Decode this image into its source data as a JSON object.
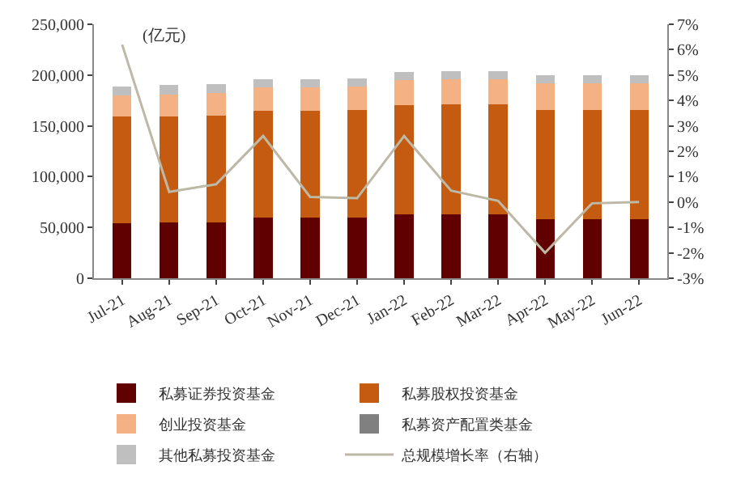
{
  "chart_data": {
    "type": "bar",
    "stacked": true,
    "legend": "bottom",
    "categories": [
      "Jul-21",
      "Aug-21",
      "Sep-21",
      "Oct-21",
      "Nov-21",
      "Dec-21",
      "Jan-22",
      "Feb-22",
      "Mar-22",
      "Apr-22",
      "May-22",
      "Jun-22"
    ],
    "annotations": [
      "(亿元)"
    ],
    "ylim": [
      0,
      250000
    ],
    "yticks": [
      {
        "value": 0,
        "label": "0"
      },
      {
        "value": 50000,
        "label": "50,000"
      },
      {
        "value": 100000,
        "label": "100,000"
      },
      {
        "value": 150000,
        "label": "150,000"
      },
      {
        "value": 200000,
        "label": "200,000"
      },
      {
        "value": 250000,
        "label": "250,000"
      }
    ],
    "y2lim": [
      -3,
      7
    ],
    "y2ticks": [
      {
        "value": -3,
        "label": "-3%"
      },
      {
        "value": -2,
        "label": "-2%"
      },
      {
        "value": -1,
        "label": "-1%"
      },
      {
        "value": 0,
        "label": "0%"
      },
      {
        "value": 1,
        "label": "1%"
      },
      {
        "value": 2,
        "label": "2%"
      },
      {
        "value": 3,
        "label": "3%"
      },
      {
        "value": 4,
        "label": "4%"
      },
      {
        "value": 5,
        "label": "5%"
      },
      {
        "value": 6,
        "label": "6%"
      },
      {
        "value": 7,
        "label": "7%"
      }
    ],
    "series": [
      {
        "name": "私募证券投资基金",
        "color": "#600000",
        "values": [
          54000,
          55000,
          55000,
          60000,
          60000,
          60000,
          63000,
          63000,
          63000,
          58000,
          58000,
          58000
        ]
      },
      {
        "name": "私募股权投资基金",
        "color": "#c55a11",
        "values": [
          105000,
          104000,
          105000,
          105000,
          105000,
          106000,
          107000,
          108000,
          108000,
          108000,
          108000,
          108000
        ]
      },
      {
        "name": "创业投资基金",
        "color": "#f4b183",
        "values": [
          21000,
          22000,
          22000,
          23000,
          23000,
          23000,
          25000,
          25000,
          25000,
          26000,
          26000,
          26000
        ]
      },
      {
        "name": "私募资产配置类基金",
        "color": "#808080",
        "values": [
          null,
          null,
          null,
          null,
          null,
          null,
          null,
          null,
          null,
          null,
          null,
          null
        ]
      },
      {
        "name": "其他私募投资基金",
        "color": "#bfbfbf",
        "values": [
          9000,
          9000,
          9000,
          8000,
          8000,
          8000,
          8000,
          8000,
          8000,
          8000,
          8000,
          8000
        ]
      },
      {
        "name": "总规模增长率（右轴）",
        "type": "line",
        "axis": "y2",
        "color": "#bdb9a6",
        "marker": "none",
        "values": [
          6.2,
          0.4,
          0.7,
          2.6,
          0.2,
          0.15,
          2.6,
          0.45,
          0.05,
          -2.0,
          -0.05,
          0.0
        ]
      }
    ]
  }
}
